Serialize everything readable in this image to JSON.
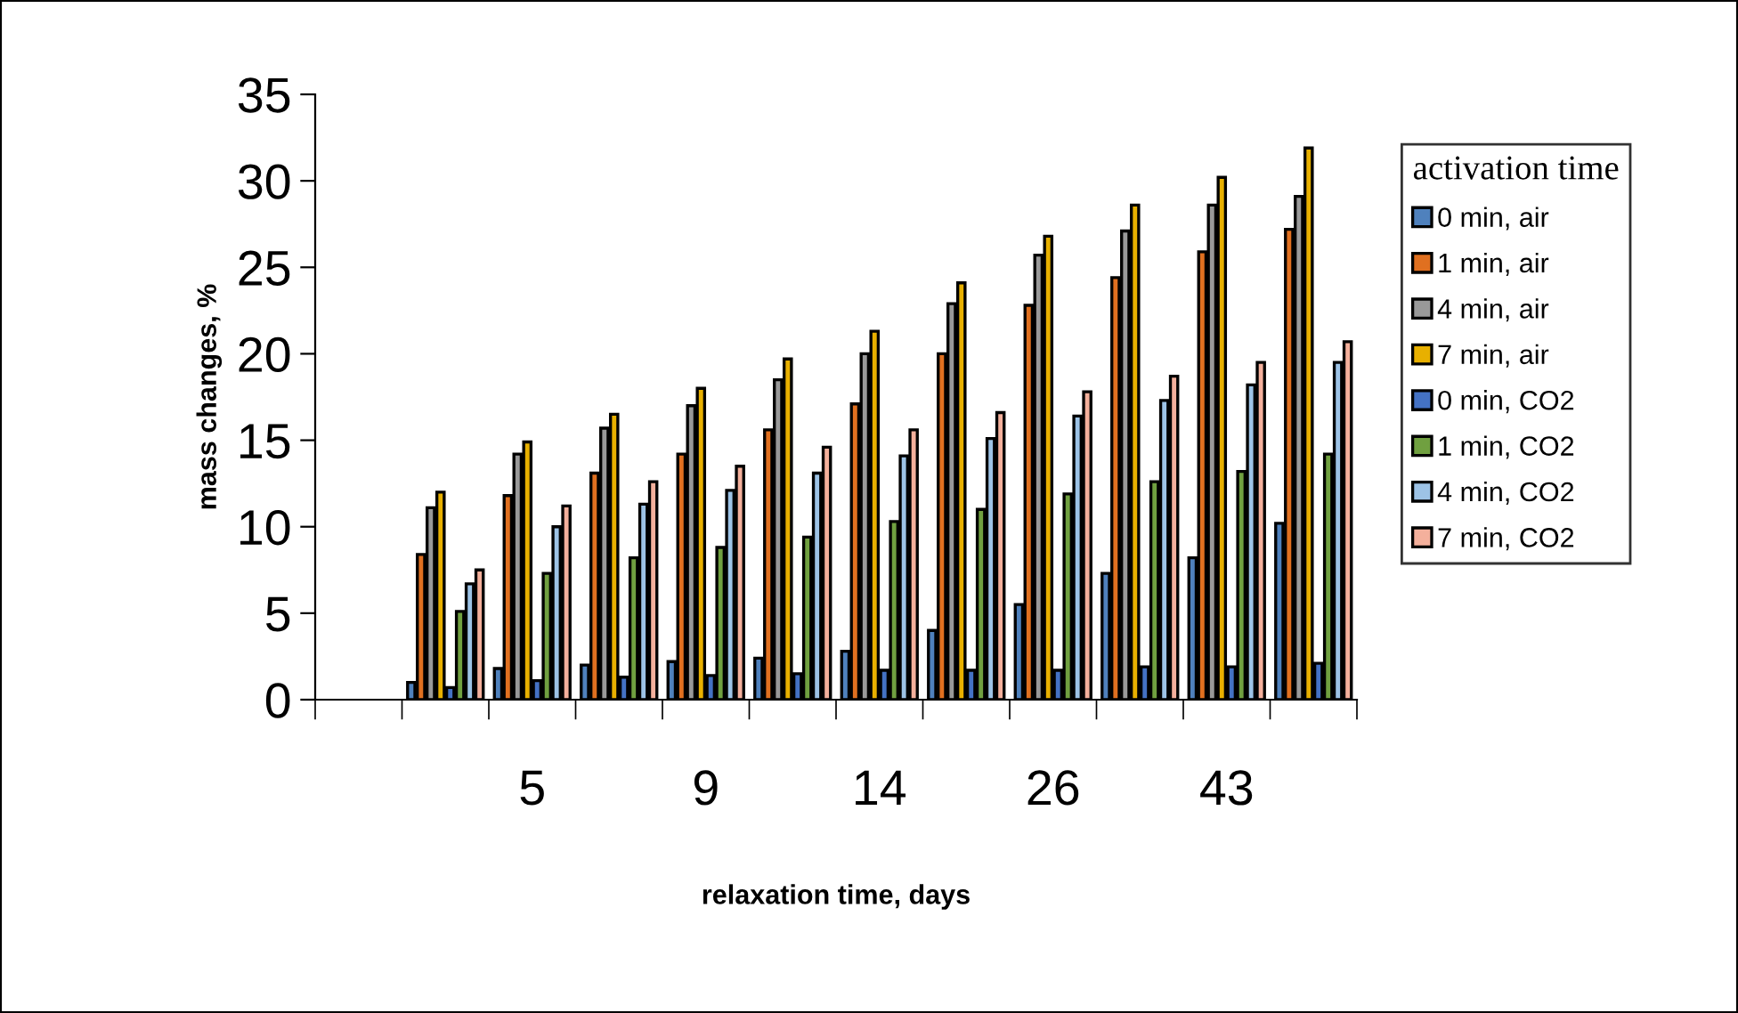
{
  "chart_data": {
    "type": "bar",
    "xlabel": "relaxation time, days",
    "ylabel": "mass changes, %",
    "legend_title": "activation time",
    "legend": "right",
    "grid": false,
    "categories": [
      null,
      null,
      "5",
      null,
      "9",
      null,
      "14",
      null,
      "26",
      null,
      "43",
      null
    ],
    "ylim": [
      0,
      35
    ],
    "yticks": [
      0,
      5,
      10,
      15,
      20,
      25,
      30,
      35
    ],
    "series": [
      {
        "name": "0 min, air",
        "color": "#4f81bd",
        "values": [
          null,
          1.0,
          1.8,
          2.0,
          2.2,
          2.4,
          2.8,
          4.0,
          5.5,
          7.3,
          8.2,
          10.2
        ]
      },
      {
        "name": "1 min, air",
        "color": "#e07020",
        "values": [
          null,
          8.4,
          11.8,
          13.1,
          14.2,
          15.6,
          17.1,
          20.0,
          22.8,
          24.4,
          25.9,
          27.2
        ]
      },
      {
        "name": "4 min, air",
        "color": "#999999",
        "values": [
          null,
          11.1,
          14.2,
          15.7,
          17.0,
          18.5,
          20.0,
          22.9,
          25.7,
          27.1,
          28.6,
          29.1
        ]
      },
      {
        "name": "7 min, air",
        "color": "#e8b000",
        "values": [
          null,
          12.0,
          14.9,
          16.5,
          18.0,
          19.7,
          21.3,
          24.1,
          26.8,
          28.6,
          30.2,
          31.9
        ]
      },
      {
        "name": "0 min, CO2",
        "color": "#4472c4",
        "values": [
          null,
          0.7,
          1.1,
          1.3,
          1.4,
          1.5,
          1.7,
          1.7,
          1.7,
          1.9,
          1.9,
          2.1
        ]
      },
      {
        "name": "1 min, CO2",
        "color": "#70a040",
        "values": [
          null,
          5.1,
          7.3,
          8.2,
          8.8,
          9.4,
          10.3,
          11.0,
          11.9,
          12.6,
          13.2,
          14.2
        ]
      },
      {
        "name": "4 min, CO2",
        "color": "#9dc3e6",
        "values": [
          null,
          6.7,
          10.0,
          11.3,
          12.1,
          13.1,
          14.1,
          15.1,
          16.4,
          17.3,
          18.2,
          19.5
        ]
      },
      {
        "name": "7 min, CO2",
        "color": "#f4b09c",
        "values": [
          null,
          7.5,
          11.2,
          12.6,
          13.5,
          14.6,
          15.6,
          16.6,
          17.8,
          18.7,
          19.5,
          20.7
        ]
      }
    ]
  }
}
